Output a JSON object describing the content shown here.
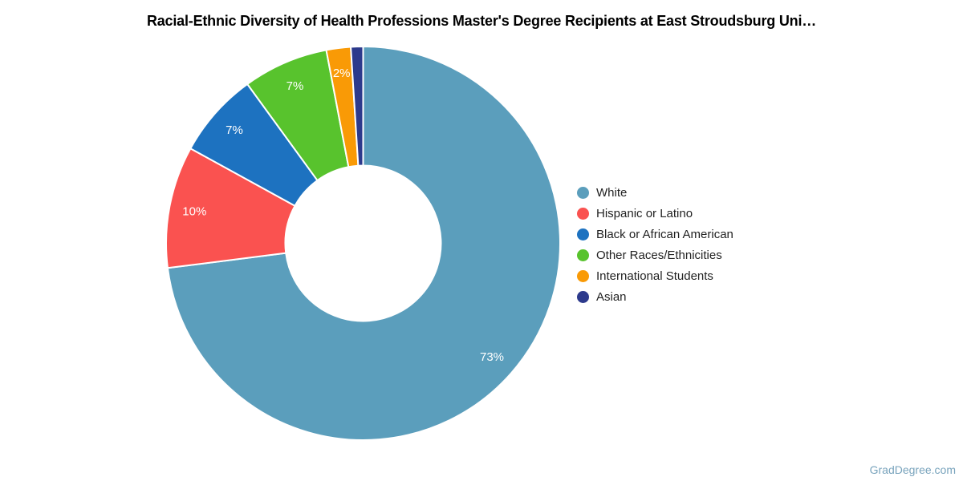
{
  "title": "Racial-Ethnic Diversity of Health Professions Master's Degree Recipients at East Stroudsburg Uni…",
  "watermark": "GradDegree.com",
  "chart_data": {
    "type": "pie",
    "subtype": "donut",
    "title": "Racial-Ethnic Diversity of Health Professions Master's Degree Recipients at East Stroudsburg Uni…",
    "unit": "%",
    "legend_position": "right",
    "start_angle_deg": 0,
    "direction": "clockwise",
    "categories": [
      "White",
      "Hispanic or Latino",
      "Black or African American",
      "Other Races/Ethnicities",
      "International Students",
      "Asian"
    ],
    "values": [
      73,
      10,
      7,
      7,
      2,
      1
    ],
    "slices": [
      {
        "label": "White",
        "value": 73,
        "pct_label": "73%",
        "color": "#5b9ebc"
      },
      {
        "label": "Hispanic or Latino",
        "value": 10,
        "pct_label": "10%",
        "color": "#fa5250"
      },
      {
        "label": "Black or African American",
        "value": 7,
        "pct_label": "7%",
        "color": "#1d72c0"
      },
      {
        "label": "Other Races/Ethnicities",
        "value": 7,
        "pct_label": "7%",
        "color": "#58c32d"
      },
      {
        "label": "International Students",
        "value": 2,
        "pct_label": "2%",
        "color": "#f99a06"
      },
      {
        "label": "Asian",
        "value": 1,
        "pct_label": "",
        "color": "#2d3a8c"
      }
    ]
  }
}
